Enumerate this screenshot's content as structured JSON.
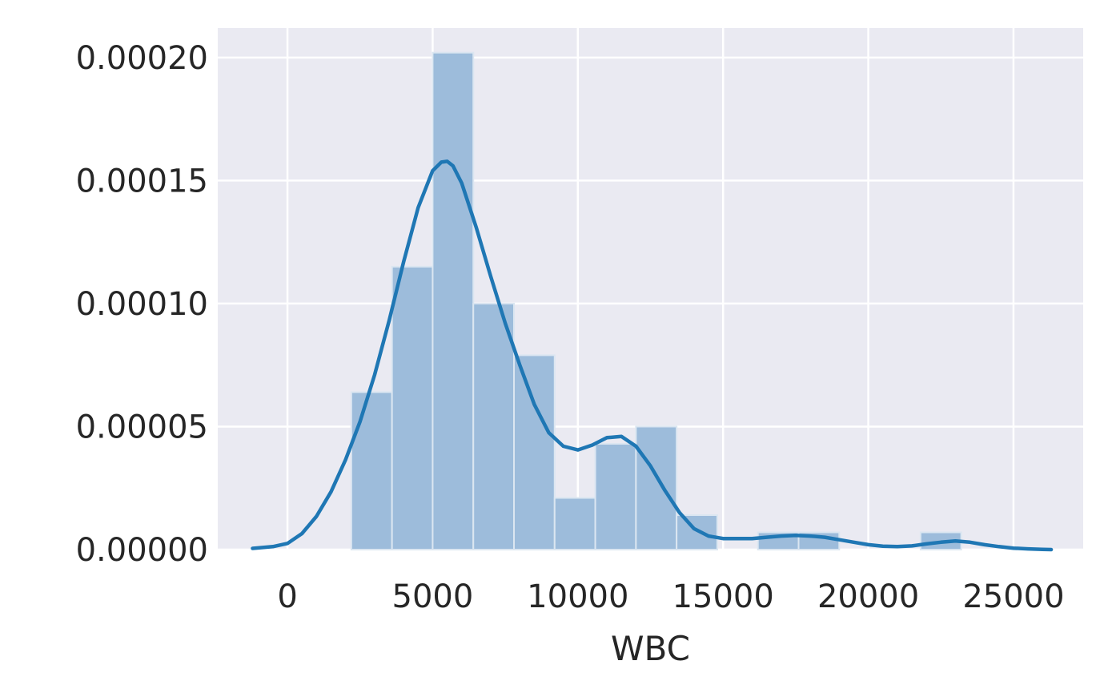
{
  "chart_data": {
    "type": "histogram",
    "title": "",
    "xlabel": "WBC",
    "ylabel": "",
    "xlim": [
      -2400,
      27400
    ],
    "ylim": [
      0,
      0.000212
    ],
    "x_ticks": [
      {
        "value": 0,
        "label": "0"
      },
      {
        "value": 5000,
        "label": "5000"
      },
      {
        "value": 10000,
        "label": "10000"
      },
      {
        "value": 15000,
        "label": "15000"
      },
      {
        "value": 20000,
        "label": "20000"
      },
      {
        "value": 25000,
        "label": "25000"
      }
    ],
    "y_ticks": [
      {
        "value": 0,
        "label": "0.00000"
      },
      {
        "value": 5e-05,
        "label": "0.00005"
      },
      {
        "value": 0.0001,
        "label": "0.00010"
      },
      {
        "value": 0.00015,
        "label": "0.00015"
      },
      {
        "value": 0.0002,
        "label": "0.00020"
      }
    ],
    "grid": true,
    "colors": {
      "background": "#eaeaf2",
      "grid": "#ffffff",
      "bar_fill": "#9dbcdb",
      "bar_edge": "#dbe6f1",
      "kde_line": "#1f77b4"
    },
    "bins": [
      {
        "x0": 2200,
        "x1": 3600,
        "density": 6.4e-05
      },
      {
        "x0": 3600,
        "x1": 5000,
        "density": 0.000115
      },
      {
        "x0": 5000,
        "x1": 6400,
        "density": 0.000202
      },
      {
        "x0": 6400,
        "x1": 7800,
        "density": 0.0001
      },
      {
        "x0": 7800,
        "x1": 9200,
        "density": 7.9e-05
      },
      {
        "x0": 9200,
        "x1": 10600,
        "density": 2.1e-05
      },
      {
        "x0": 10600,
        "x1": 12000,
        "density": 4.3e-05
      },
      {
        "x0": 12000,
        "x1": 13400,
        "density": 5e-05
      },
      {
        "x0": 13400,
        "x1": 14800,
        "density": 1.4e-05
      },
      {
        "x0": 14800,
        "x1": 16200,
        "density": 0.0
      },
      {
        "x0": 16200,
        "x1": 17600,
        "density": 7e-06
      },
      {
        "x0": 17600,
        "x1": 19000,
        "density": 7e-06
      },
      {
        "x0": 19000,
        "x1": 20400,
        "density": 0.0
      },
      {
        "x0": 20400,
        "x1": 21800,
        "density": 0.0
      },
      {
        "x0": 21800,
        "x1": 23200,
        "density": 7e-06
      }
    ],
    "kde": {
      "x": [
        -1200,
        -500,
        0,
        500,
        1000,
        1500,
        2000,
        2500,
        3000,
        3500,
        4000,
        4500,
        5000,
        5300,
        5500,
        5700,
        6000,
        6500,
        7000,
        7500,
        8000,
        8500,
        9000,
        9500,
        10000,
        10500,
        11000,
        11500,
        12000,
        12500,
        13000,
        13500,
        14000,
        14500,
        15000,
        15500,
        16000,
        16500,
        17000,
        17500,
        18000,
        18500,
        19000,
        19500,
        20000,
        20500,
        21000,
        21500,
        22000,
        22500,
        23000,
        23500,
        24000,
        24500,
        25000,
        25500,
        26000,
        26300
      ],
      "y": [
        5e-07,
        1.2e-06,
        2.5e-06,
        6.5e-06,
        1.35e-05,
        2.35e-05,
        3.65e-05,
        5.2e-05,
        7.1e-05,
        9.3e-05,
        0.000117,
        0.000139,
        0.000154,
        0.0001575,
        0.0001578,
        0.000156,
        0.000149,
        0.000131,
        0.000111,
        9.2e-05,
        7.5e-05,
        5.9e-05,
        4.75e-05,
        4.2e-05,
        4.05e-05,
        4.25e-05,
        4.55e-05,
        4.6e-05,
        4.2e-05,
        3.4e-05,
        2.4e-05,
        1.5e-05,
        8.5e-06,
        5.5e-06,
        4.5e-06,
        4.5e-06,
        4.5e-06,
        5e-06,
        5.5e-06,
        5.8e-06,
        5.5e-06,
        5e-06,
        4e-06,
        3e-06,
        2e-06,
        1.4e-06,
        1.2e-06,
        1.5e-06,
        2.3e-06,
        3e-06,
        3.5e-06,
        3e-06,
        2e-06,
        1.2e-06,
        6e-07,
        3e-07,
        1e-07,
        0.0
      ]
    }
  }
}
